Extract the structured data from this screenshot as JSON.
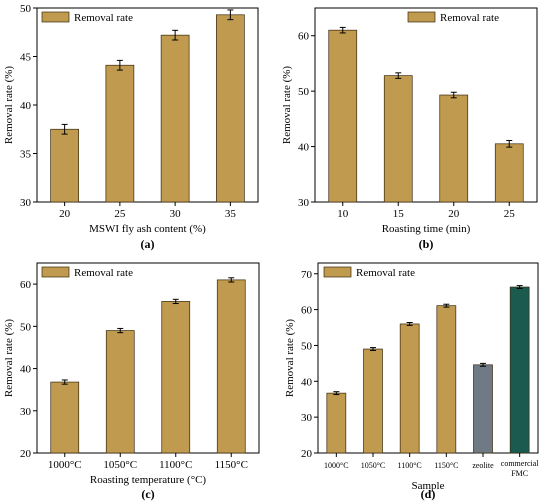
{
  "colors": {
    "bar": "#c09a4e",
    "bar_stroke": "#3a2a10",
    "axis": "#000000",
    "zeolite": "#6f7a84",
    "commercial": "#1b5b4f"
  },
  "chart_data": [
    {
      "panel": "(a)",
      "type": "bar",
      "categories": [
        "20",
        "25",
        "30",
        "35"
      ],
      "series": [
        {
          "name": "Removal rate",
          "values": [
            37.5,
            44.1,
            47.2,
            49.3
          ]
        }
      ],
      "errors": [
        0.5,
        0.5,
        0.5,
        0.5
      ],
      "xlabel": "MSWI fly ash content (%)",
      "ylabel": "Removal rate (%)",
      "ylim": [
        30,
        50
      ],
      "yticks": [
        30,
        35,
        40,
        45,
        50
      ],
      "legend": "top-left",
      "grid": false
    },
    {
      "panel": "(b)",
      "type": "bar",
      "categories": [
        "10",
        "15",
        "20",
        "25"
      ],
      "series": [
        {
          "name": "Removal rate",
          "values": [
            61.0,
            52.8,
            49.3,
            40.5
          ]
        }
      ],
      "errors": [
        0.5,
        0.5,
        0.5,
        0.6
      ],
      "xlabel": "Roasting time (min)",
      "ylabel": "Removal rate (%)",
      "ylim": [
        30,
        65
      ],
      "yticks": [
        30,
        40,
        50,
        60
      ],
      "legend": "top-right",
      "grid": false
    },
    {
      "panel": "(c)",
      "type": "bar",
      "categories": [
        "1000°C",
        "1050°C",
        "1100°C",
        "1150°C"
      ],
      "series": [
        {
          "name": "Removal rate",
          "values": [
            36.8,
            49.0,
            55.9,
            61.0
          ]
        }
      ],
      "errors": [
        0.5,
        0.5,
        0.5,
        0.5
      ],
      "xlabel": "Roasting temperature (°C)",
      "ylabel": "Removal rate (%)",
      "ylim": [
        20,
        65
      ],
      "yticks": [
        20,
        30,
        40,
        50,
        60
      ],
      "legend": "top-left",
      "grid": false
    },
    {
      "panel": "(d)",
      "type": "bar",
      "categories": [
        "1000°C",
        "1050°C",
        "1100°C",
        "1150°C",
        "zeolite",
        "commercial FMC"
      ],
      "series": [
        {
          "name": "Removal rate",
          "values": [
            36.7,
            49.0,
            56.0,
            61.1,
            44.6,
            66.3
          ]
        }
      ],
      "errors": [
        0.4,
        0.4,
        0.4,
        0.4,
        0.4,
        0.4
      ],
      "bar_colors": [
        "#c09a4e",
        "#c09a4e",
        "#c09a4e",
        "#c09a4e",
        "#6f7a84",
        "#1b5b4f"
      ],
      "xlabel": "Sample",
      "ylabel": "Removal rate (%)",
      "ylim": [
        20,
        73
      ],
      "yticks": [
        20,
        30,
        40,
        50,
        60,
        70
      ],
      "legend": "top-left",
      "grid": false
    }
  ]
}
